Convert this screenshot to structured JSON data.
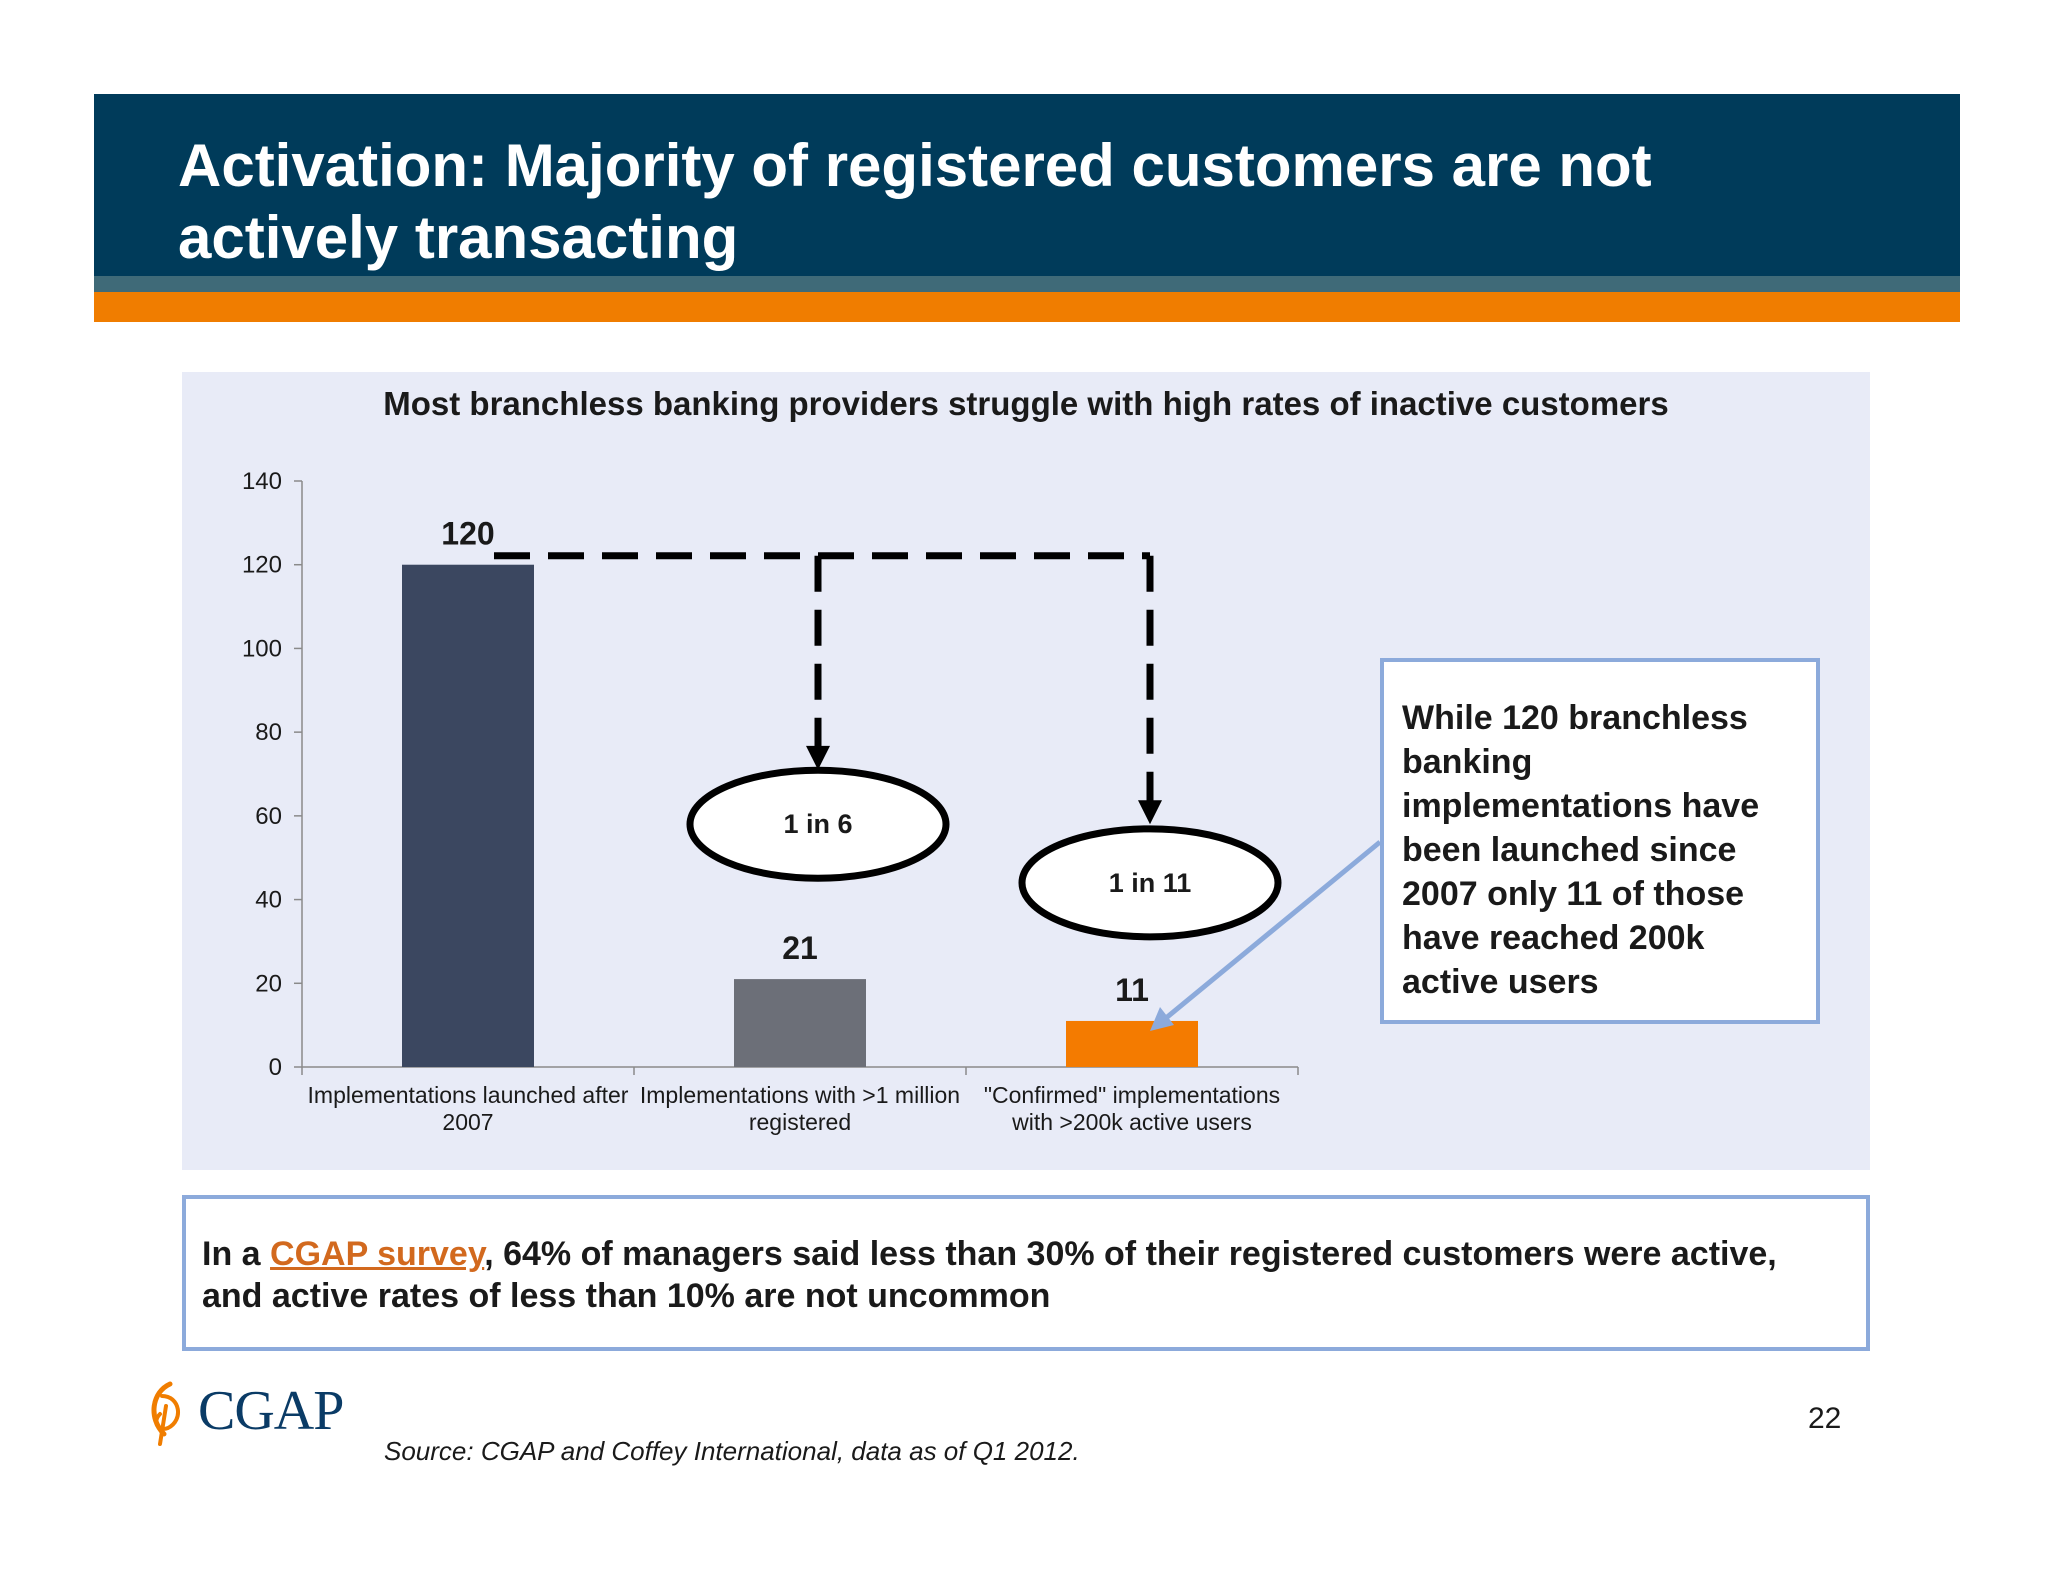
{
  "header": {
    "title": "Activation: Majority of registered customers are not actively transacting"
  },
  "chart_data": {
    "type": "bar",
    "title": "Most branchless banking providers struggle with high rates of inactive customers",
    "categories": [
      [
        "Implementations launched after",
        "2007"
      ],
      [
        "Implementations with >1 million",
        "registered"
      ],
      [
        "\"Confirmed\" implementations",
        "with >200k active users"
      ]
    ],
    "values": [
      120,
      21,
      11
    ],
    "data_labels": [
      "120",
      "21",
      "11"
    ],
    "bar_colors": [
      "#3b4760",
      "#6c6f78",
      "#f47b00"
    ],
    "ylim": [
      0,
      140
    ],
    "yticks": [
      0,
      20,
      40,
      60,
      80,
      100,
      120,
      140
    ],
    "grid": false,
    "legend": "none",
    "annotations": [
      {
        "text": "1 in 6",
        "target_category": 1
      },
      {
        "text": "1 in 11",
        "target_category": 2
      }
    ]
  },
  "callout": {
    "text": "While 120 branchless banking implementations have been launched since 2007 only 11 of those have reached 200k active users",
    "border_color": "#8caadb"
  },
  "bottom": {
    "prefix": "In a ",
    "link_text": "CGAP survey",
    "suffix": ", 64% of managers said less than 30% of their registered customers were active, and active rates of less than 10% are not uncommon"
  },
  "logo": {
    "text": "CGAP",
    "icon": "cgap-leaf-icon"
  },
  "page_number": "22",
  "source": "Source: CGAP and Coffey International, data as of Q1 2012.",
  "colors": {
    "header_bg": "#003b5a",
    "accent_orange": "#f07d00",
    "panel_bg": "#e8ebf7"
  }
}
